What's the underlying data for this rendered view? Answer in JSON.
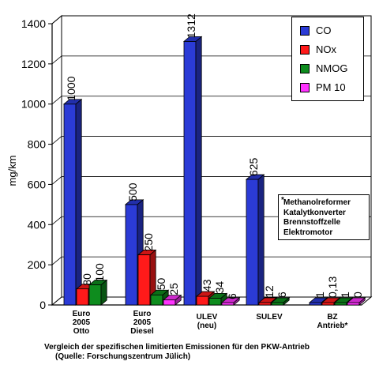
{
  "chart_data": {
    "type": "bar",
    "title": "",
    "ylabel": "mg/km",
    "xlabel": "",
    "ylim": [
      0,
      1400
    ],
    "yticks": [
      0,
      200,
      400,
      600,
      800,
      1000,
      1200,
      1400
    ],
    "grid": true,
    "legend_position": "top-right",
    "categories": [
      [
        "Euro",
        "2005",
        "Otto"
      ],
      [
        "Euro",
        "2005",
        "Diesel"
      ],
      [
        "ULEV",
        "(neu)"
      ],
      [
        "SULEV"
      ],
      [
        "BZ",
        "Antrieb*"
      ]
    ],
    "series": [
      {
        "name": "CO",
        "color": "#2b3bd6",
        "values": [
          1000,
          500,
          1312,
          625,
          1
        ],
        "labels": [
          "1000",
          "500",
          "1312",
          "625",
          "1"
        ]
      },
      {
        "name": "NOx",
        "color": "#ff1a1a",
        "values": [
          80,
          250,
          43,
          12,
          0.13
        ],
        "labels": [
          "80",
          "250",
          "43",
          "12",
          "0,13"
        ]
      },
      {
        "name": "NMOG",
        "color": "#0e8c1e",
        "values": [
          100,
          50,
          34,
          6,
          1
        ],
        "labels": [
          "100",
          "50",
          "34",
          "6",
          "1"
        ]
      },
      {
        "name": "PM 10",
        "color": "#ff33ff",
        "values": [
          null,
          25,
          6,
          null,
          0
        ],
        "labels": [
          null,
          "25",
          "6",
          null,
          "0"
        ]
      }
    ]
  },
  "note": {
    "star": "*",
    "lines": [
      "Methanolreformer",
      "Katalytkonverter",
      "Brennstoffzelle",
      "Elektromotor"
    ]
  },
  "caption": {
    "line1": "Vergleich der spezifischen limitierten Emissionen für den PKW-Antrieb",
    "line2": "(Quelle: Forschungszentrum Jülich)"
  }
}
